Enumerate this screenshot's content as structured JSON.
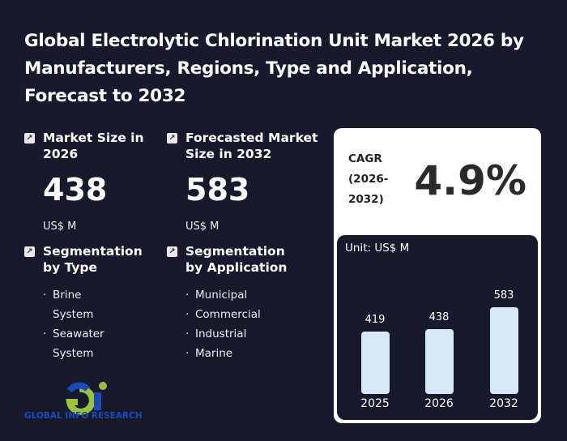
{
  "title": "Global Electrolytic Chlorination Unit Market 2026 by Manufacturers, Regions, Type and Application, Forecast to 2032",
  "market_size": {
    "label": "Market Size in 2026",
    "value": "438",
    "unit": "US$ M",
    "icon": "arrow-up-right-icon"
  },
  "forecast": {
    "label": "Forecasted Market Size in 2032",
    "value": "583",
    "unit": "US$ M",
    "icon": "arrow-up-right-icon"
  },
  "seg_type": {
    "label": "Segmentation by Type",
    "items": [
      "Brine System",
      "Seawater System"
    ]
  },
  "seg_app": {
    "label": "Segmentation by Application",
    "items": [
      "Municipal",
      "Commercial",
      "Industrial",
      "Marine"
    ]
  },
  "cagr": {
    "label": "CAGR (2026-2032)",
    "value": "4.9%"
  },
  "chart_data": {
    "type": "bar",
    "unit_label": "Unit: US$ M",
    "categories": [
      "2025",
      "2026",
      "2032"
    ],
    "values": [
      419,
      438,
      583
    ],
    "value_labels": [
      "419",
      "438",
      "583"
    ],
    "ylim": [
      0,
      583
    ],
    "bar_color": "#d6e9fb"
  },
  "logo": {
    "text": "GLOBAL INFO RESEARCH",
    "colors": {
      "blue": "#1d48b8",
      "green": "#9bc23c"
    }
  }
}
